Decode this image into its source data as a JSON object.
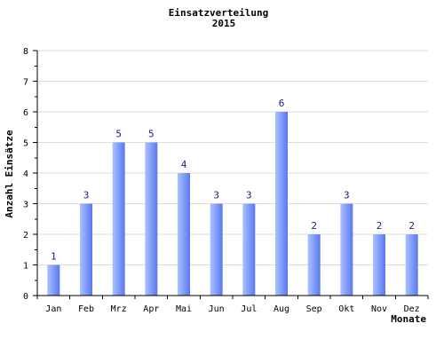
{
  "chart_data": {
    "type": "bar",
    "title": "Einsatzverteilung",
    "subtitle": "2015",
    "xlabel": "Monate",
    "ylabel": "Anzahl Einsätze",
    "categories": [
      "Jan",
      "Feb",
      "Mrz",
      "Apr",
      "Mai",
      "Jun",
      "Jul",
      "Aug",
      "Sep",
      "Okt",
      "Nov",
      "Dez"
    ],
    "values": [
      1,
      3,
      5,
      5,
      4,
      3,
      3,
      6,
      2,
      3,
      2,
      2
    ],
    "ylim": [
      0,
      8
    ],
    "yticks": [
      0,
      1,
      2,
      3,
      4,
      5,
      6,
      7,
      8
    ],
    "grid": true,
    "legend": "none",
    "colors": {
      "bar_light": "#a9c2ff",
      "bar_dark": "#5a78f0",
      "grid": "#dddddd",
      "data_label": "#1a1a80"
    }
  }
}
